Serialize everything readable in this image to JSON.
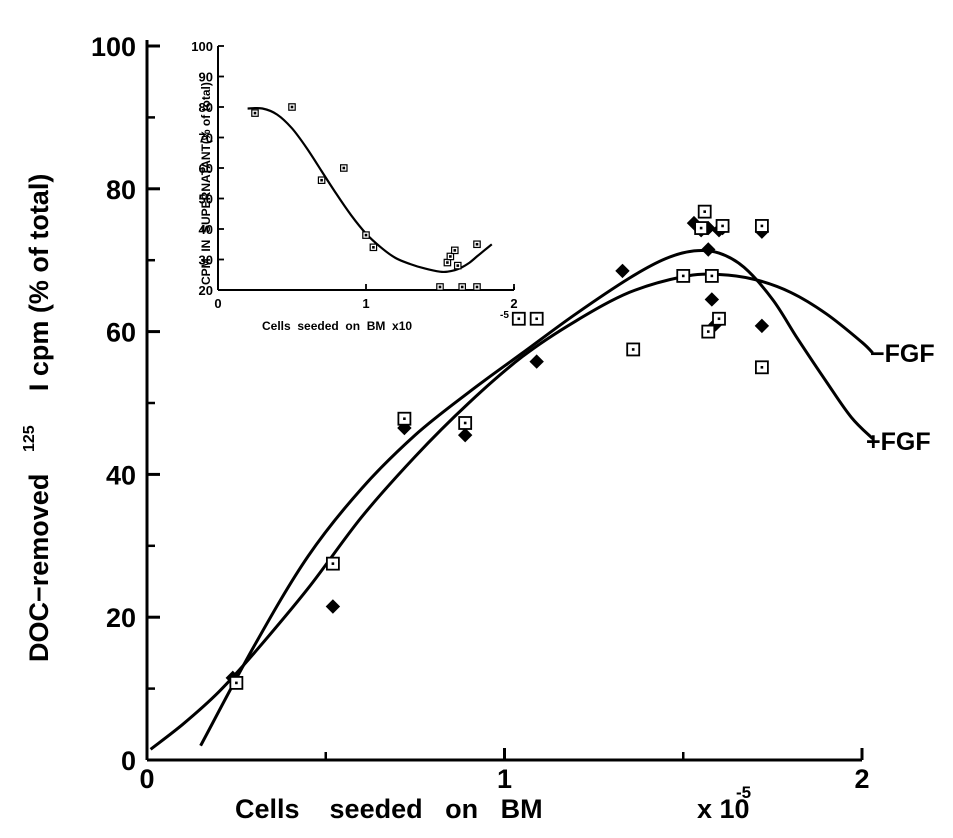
{
  "chart_data": [
    {
      "type": "scatter",
      "title": "",
      "xlabel": "Cells    seeded   on   BM",
      "xlabel_exponent_base": "x 10",
      "xlabel_exponent": "-5",
      "ylabel_superscript": "125",
      "ylabel": "DOC−removed           I cpm (% of total)",
      "xlim": [
        0,
        2.1
      ],
      "ylim": [
        0,
        100
      ],
      "x_ticks": [
        "0",
        "1",
        "2"
      ],
      "y_ticks": [
        "0",
        "20",
        "40",
        "60",
        "80",
        "100"
      ],
      "series": [
        {
          "name": "+FGF",
          "marker": "filled-diamond",
          "x": [
            0.24,
            0.52,
            0.72,
            0.89,
            1.09,
            1.33,
            1.53,
            1.55,
            1.57,
            1.57,
            1.58,
            1.59,
            1.6,
            1.61,
            1.72,
            1.72
          ],
          "y": [
            11.5,
            21.5,
            46.5,
            45.5,
            55.8,
            68.5,
            75.2,
            74.2,
            74.5,
            71.5,
            64.5,
            61,
            74.2,
            74.5,
            60.8,
            74
          ]
        },
        {
          "name": "−FGF",
          "marker": "open-square",
          "x": [
            0.25,
            0.52,
            0.72,
            0.89,
            1.04,
            1.09,
            1.36,
            1.5,
            1.55,
            1.56,
            1.57,
            1.58,
            1.6,
            1.61,
            1.72,
            1.72
          ],
          "y": [
            10.8,
            27.5,
            47.8,
            47.2,
            61.8,
            61.8,
            57.5,
            67.8,
            74.5,
            76.8,
            60,
            67.8,
            61.8,
            74.8,
            55,
            74.8
          ]
        }
      ],
      "curves": [
        {
          "name": "+FGF",
          "label": "+FGF",
          "x": [
            0.15,
            0.3,
            0.45,
            0.6,
            0.75,
            0.9,
            1.05,
            1.2,
            1.35,
            1.45,
            1.53,
            1.6,
            1.67,
            1.75,
            1.82,
            1.9,
            1.97,
            2.03
          ],
          "y": [
            2,
            16,
            28.5,
            38,
            45.5,
            51.5,
            57,
            62.5,
            67.5,
            70.2,
            71.3,
            71,
            69,
            64.5,
            59,
            53,
            48,
            45
          ]
        },
        {
          "name": "−FGF",
          "label": "−FGF",
          "x": [
            0.01,
            0.1,
            0.2,
            0.3,
            0.45,
            0.6,
            0.75,
            0.9,
            1.05,
            1.2,
            1.35,
            1.5,
            1.6,
            1.7,
            1.8,
            1.9,
            2.0,
            2.03
          ],
          "y": [
            1.5,
            5,
            9.5,
            15,
            24,
            34,
            42.5,
            50,
            56.5,
            61.5,
            65.5,
            67.7,
            68,
            67.3,
            65.5,
            62.5,
            58.5,
            57
          ]
        }
      ]
    },
    {
      "type": "scatter",
      "title": "",
      "xlabel": "Cells  seeded  on  BM  x10",
      "xlabel_exponent": "-5",
      "ylabel": "CPM  IN  SUPERNATANT(% of total)",
      "xlim": [
        0,
        2
      ],
      "ylim": [
        20,
        100
      ],
      "x_ticks": [
        "0",
        "1",
        "2"
      ],
      "y_ticks": [
        "20",
        "30",
        "40",
        "50",
        "60",
        "70",
        "80",
        "90",
        "100"
      ],
      "series": [
        {
          "name": "",
          "marker": "open-square",
          "x": [
            0.25,
            0.5,
            0.7,
            0.85,
            1.0,
            1.05,
            1.5,
            1.55,
            1.57,
            1.6,
            1.62,
            1.65,
            1.75,
            1.75
          ],
          "y": [
            78,
            80,
            56,
            60,
            38,
            34,
            21,
            29,
            31,
            33,
            28,
            21,
            35,
            21
          ]
        }
      ],
      "curves": [
        {
          "name": "",
          "x": [
            0.2,
            0.3,
            0.4,
            0.5,
            0.6,
            0.7,
            0.8,
            0.9,
            1.0,
            1.1,
            1.2,
            1.3,
            1.4,
            1.5,
            1.55,
            1.6,
            1.65,
            1.7,
            1.75,
            1.8,
            1.85
          ],
          "y": [
            79.5,
            79.5,
            77.5,
            73,
            66.5,
            59,
            51.5,
            44.5,
            38.5,
            34,
            30.5,
            28.5,
            27,
            26,
            26,
            26.5,
            27.5,
            29,
            31,
            33,
            35
          ]
        }
      ]
    }
  ]
}
